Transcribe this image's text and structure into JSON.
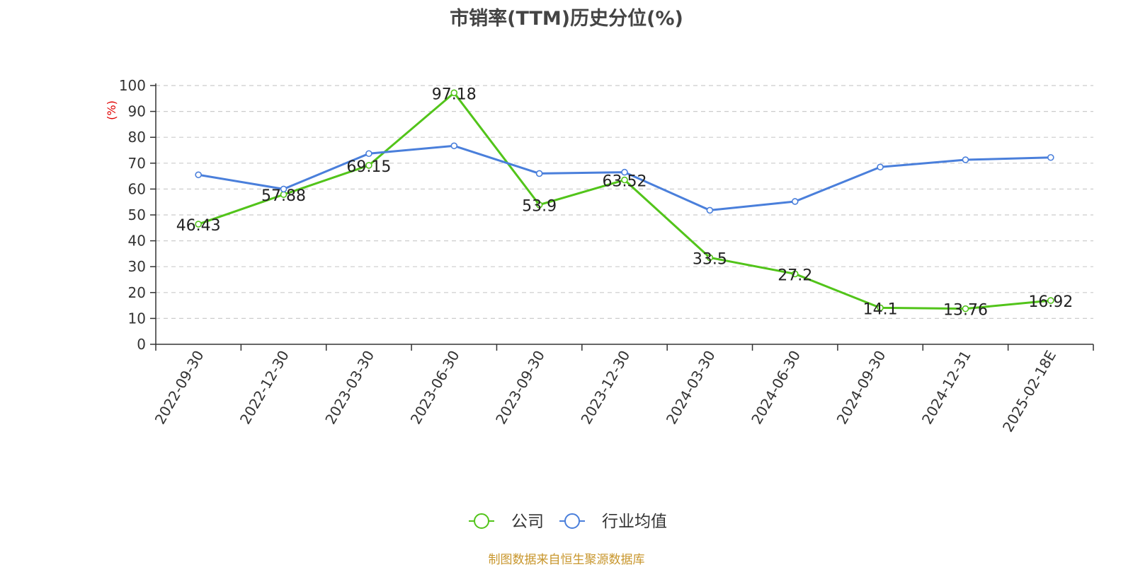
{
  "chart_data": {
    "type": "line",
    "title": "市销率(TTM)历史分位(%)",
    "ylabel": "(%)",
    "xlabel": "",
    "ylim": [
      0,
      100
    ],
    "yticks": [
      0,
      10,
      20,
      30,
      40,
      50,
      60,
      70,
      80,
      90,
      100
    ],
    "grid": true,
    "legend_position": "bottom",
    "categories": [
      "2022-09-30",
      "2022-12-30",
      "2023-03-30",
      "2023-06-30",
      "2023-09-30",
      "2023-12-30",
      "2024-03-30",
      "2024-06-30",
      "2024-09-30",
      "2024-12-31",
      "2025-02-18E"
    ],
    "series": [
      {
        "name": "公司",
        "color": "#52c41a",
        "values": [
          46.43,
          57.88,
          69.15,
          97.18,
          53.9,
          63.52,
          33.5,
          27.2,
          14.1,
          13.76,
          16.92
        ],
        "labels": [
          "46.43",
          "57.88",
          "69.15",
          "97.18",
          "53.9",
          "63.52",
          "33.5",
          "27.2",
          "14.1",
          "13.76",
          "16.92"
        ]
      },
      {
        "name": "行业均值",
        "color": "#4a7fdb",
        "values": [
          65.5,
          60.0,
          73.7,
          76.7,
          66.0,
          66.5,
          51.8,
          55.2,
          68.5,
          71.3,
          72.2
        ]
      }
    ]
  },
  "source": "制图数据来自恒生聚源数据库"
}
